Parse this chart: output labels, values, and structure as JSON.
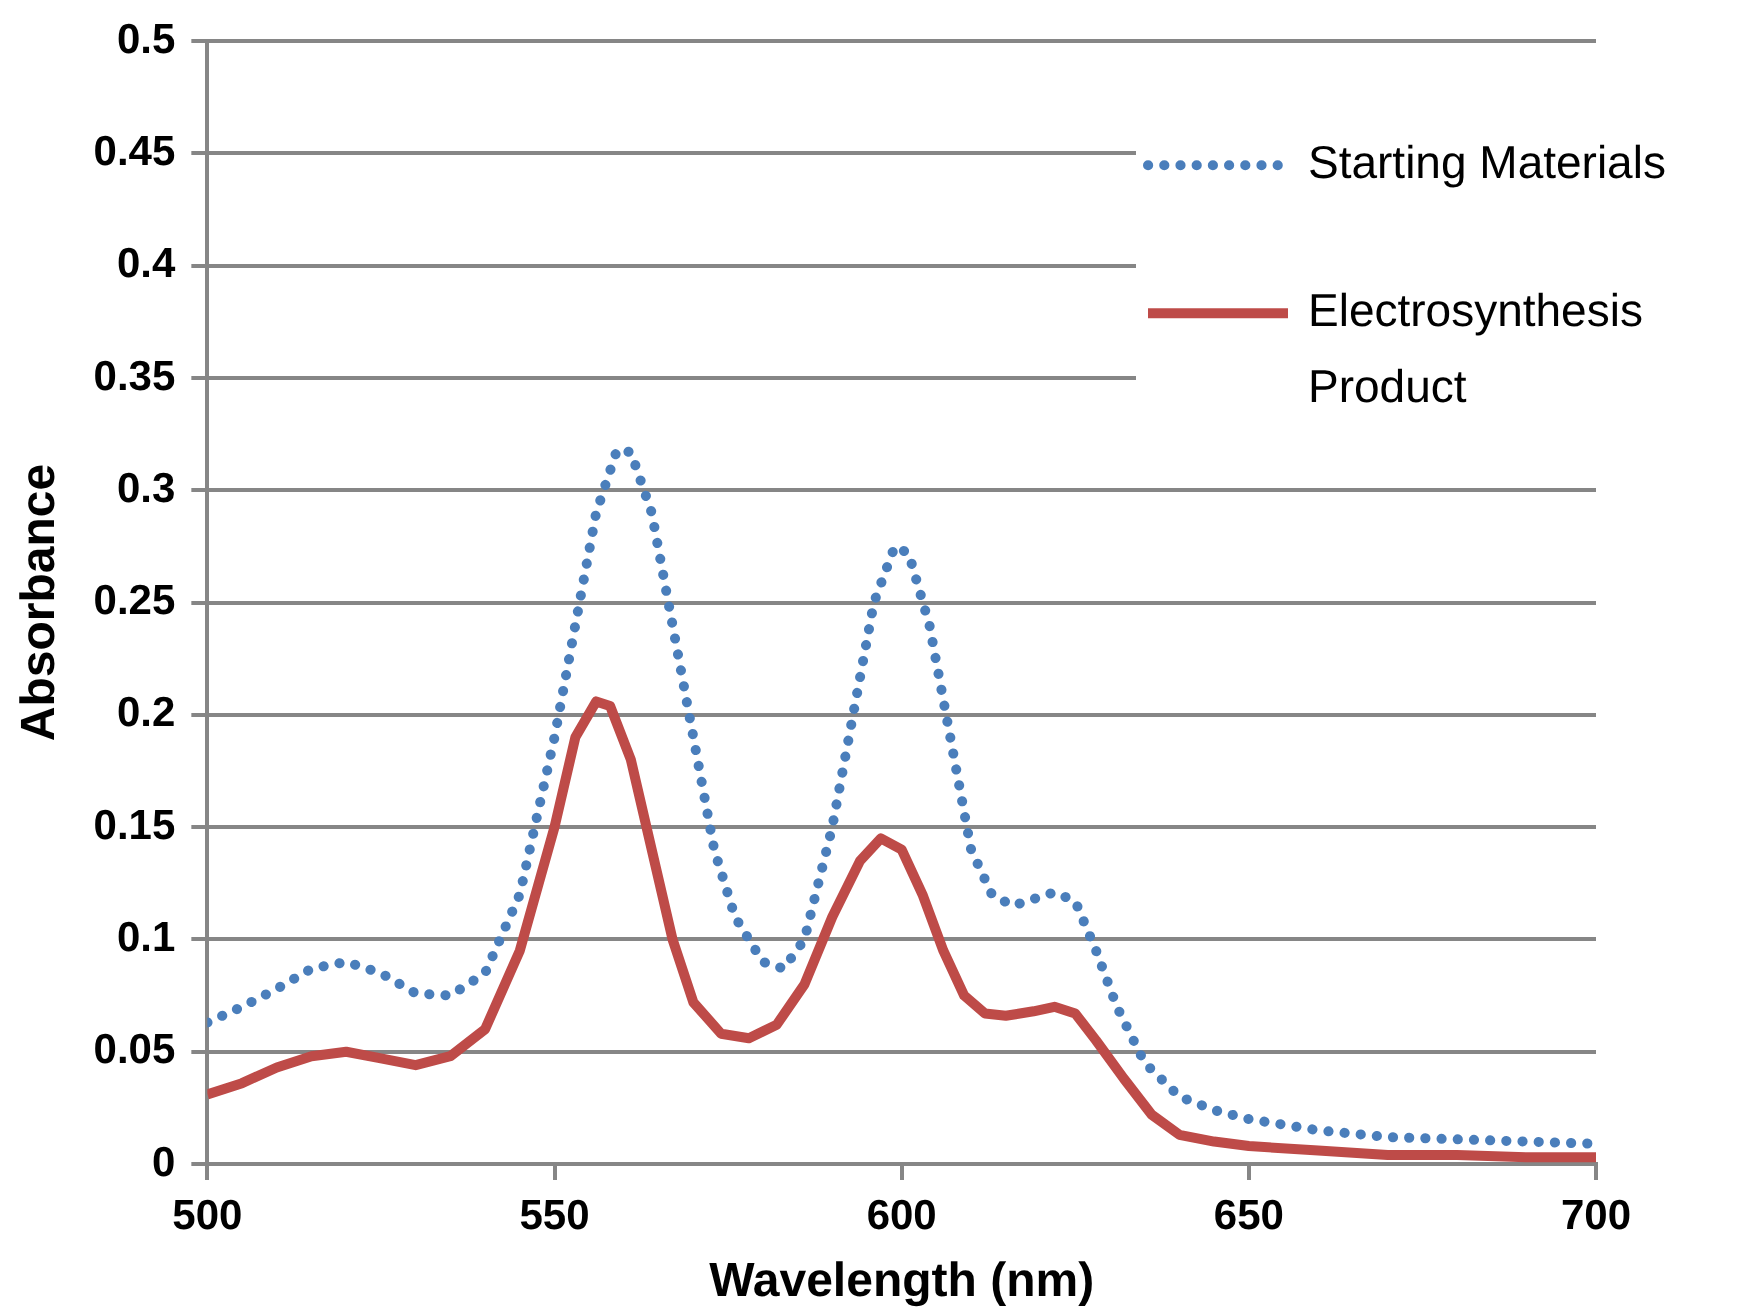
{
  "chart_data": {
    "type": "line",
    "xlabel": "Wavelength (nm)",
    "ylabel": "Absorbance",
    "xlim": [
      500,
      700
    ],
    "xticks": [
      500,
      550,
      600,
      650,
      700
    ],
    "ylim": [
      0,
      0.5
    ],
    "yticks": [
      0,
      0.05,
      0.1,
      0.15,
      0.2,
      0.25,
      0.3,
      0.35,
      0.4,
      0.45,
      0.5
    ],
    "grid": "y",
    "legend": "right",
    "marker": "none",
    "series": [
      {
        "name": "Starting Materials",
        "color": "#4a7ebb",
        "line_style": "dotted",
        "x": [
          500,
          505,
          510,
          515,
          520,
          525,
          530,
          535,
          540,
          545,
          550,
          553,
          556,
          559,
          561,
          564,
          567,
          570,
          573,
          576,
          580,
          583,
          586,
          590,
          593,
          596,
          599,
          601,
          604,
          607,
          610,
          613,
          616,
          619,
          622,
          625,
          628,
          631,
          635,
          640,
          645,
          650,
          660,
          670,
          680,
          690,
          700
        ],
        "values": [
          0.063,
          0.07,
          0.078,
          0.087,
          0.09,
          0.085,
          0.076,
          0.075,
          0.085,
          0.12,
          0.19,
          0.24,
          0.29,
          0.318,
          0.317,
          0.29,
          0.24,
          0.19,
          0.14,
          0.11,
          0.09,
          0.087,
          0.1,
          0.15,
          0.2,
          0.25,
          0.275,
          0.272,
          0.24,
          0.19,
          0.14,
          0.12,
          0.115,
          0.118,
          0.121,
          0.117,
          0.095,
          0.07,
          0.045,
          0.03,
          0.024,
          0.02,
          0.015,
          0.012,
          0.011,
          0.01,
          0.009
        ]
      },
      {
        "name": "Electrosynthesis Product",
        "color": "#be4b48",
        "line_style": "solid",
        "x": [
          500,
          505,
          510,
          515,
          520,
          525,
          530,
          535,
          540,
          545,
          550,
          553,
          556,
          558,
          561,
          564,
          567,
          570,
          574,
          578,
          582,
          586,
          590,
          594,
          597,
          600,
          603,
          606,
          609,
          612,
          615,
          619,
          622,
          625,
          628,
          632,
          636,
          640,
          645,
          650,
          660,
          670,
          680,
          690,
          700
        ],
        "values": [
          0.031,
          0.036,
          0.043,
          0.048,
          0.05,
          0.047,
          0.044,
          0.048,
          0.06,
          0.095,
          0.15,
          0.19,
          0.206,
          0.204,
          0.18,
          0.14,
          0.1,
          0.072,
          0.058,
          0.056,
          0.062,
          0.08,
          0.11,
          0.135,
          0.145,
          0.14,
          0.12,
          0.095,
          0.075,
          0.067,
          0.066,
          0.068,
          0.07,
          0.067,
          0.055,
          0.038,
          0.022,
          0.013,
          0.01,
          0.008,
          0.006,
          0.004,
          0.004,
          0.003,
          0.003
        ]
      }
    ]
  }
}
